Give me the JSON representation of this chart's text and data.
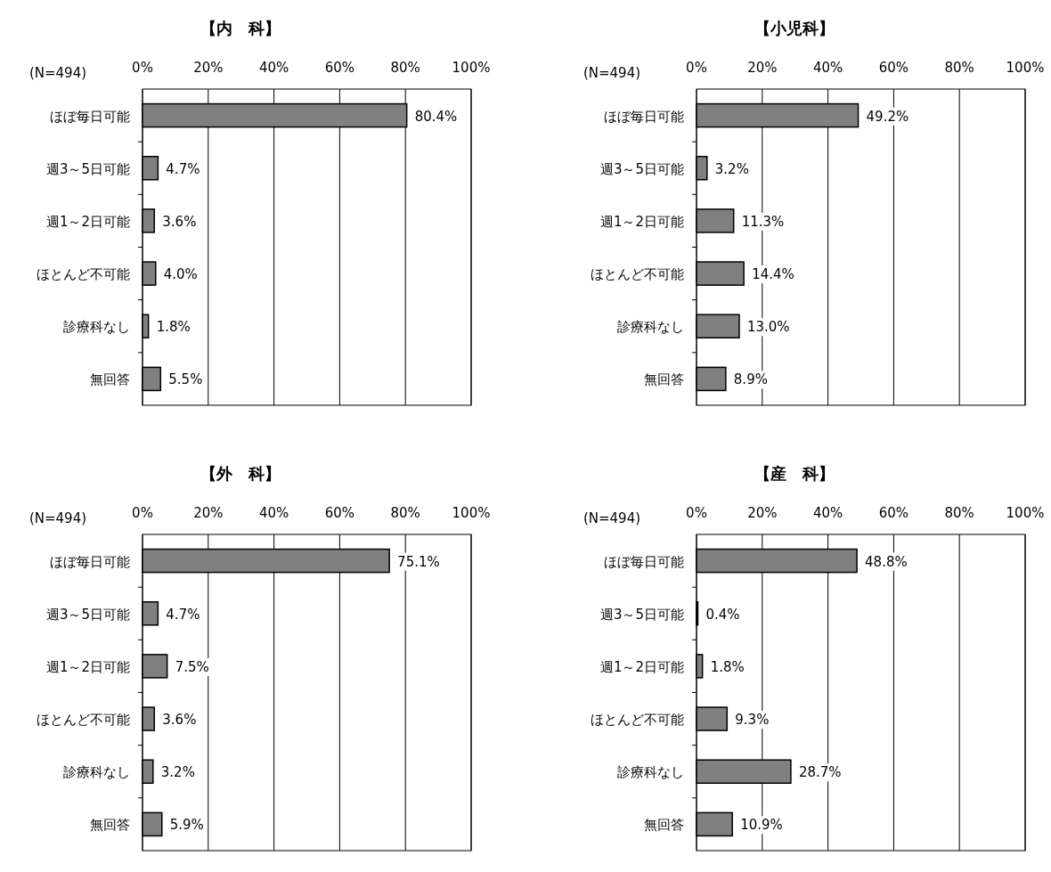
{
  "chart_data": [
    {
      "type": "bar",
      "orientation": "horizontal",
      "title": "【内　科】",
      "annotations": [
        "(N=494)"
      ],
      "categories": [
        "ほぼ毎日可能",
        "週3～5日可能",
        "週1～2日可能",
        "ほとんど不可能",
        "診療科なし",
        "無回答"
      ],
      "values": [
        80.4,
        4.7,
        3.6,
        4.0,
        1.8,
        5.5
      ],
      "value_labels": [
        "80.4%",
        "4.7%",
        "3.6%",
        "4.0%",
        "1.8%",
        "5.5%"
      ],
      "color": "#808080",
      "xlim": [
        0,
        100
      ],
      "xticks": [
        {
          "value": 0,
          "label": "0%"
        },
        {
          "value": 20,
          "label": "20%"
        },
        {
          "value": 40,
          "label": "40%"
        },
        {
          "value": 60,
          "label": "60%"
        },
        {
          "value": 80,
          "label": "80%"
        },
        {
          "value": 100,
          "label": "100%"
        }
      ],
      "grid": "x"
    },
    {
      "type": "bar",
      "orientation": "horizontal",
      "title": "【小児科】",
      "annotations": [
        "(N=494)"
      ],
      "categories": [
        "ほぼ毎日可能",
        "週3～5日可能",
        "週1～2日可能",
        "ほとんど不可能",
        "診療科なし",
        "無回答"
      ],
      "values": [
        49.2,
        3.2,
        11.3,
        14.4,
        13.0,
        8.9
      ],
      "value_labels": [
        "49.2%",
        "3.2%",
        "11.3%",
        "14.4%",
        "13.0%",
        "8.9%"
      ],
      "color": "#808080",
      "xlim": [
        0,
        100
      ],
      "xticks": [
        {
          "value": 0,
          "label": "0%"
        },
        {
          "value": 20,
          "label": "20%"
        },
        {
          "value": 40,
          "label": "40%"
        },
        {
          "value": 60,
          "label": "60%"
        },
        {
          "value": 80,
          "label": "80%"
        },
        {
          "value": 100,
          "label": "100%"
        }
      ],
      "grid": "x"
    },
    {
      "type": "bar",
      "orientation": "horizontal",
      "title": "【外　科】",
      "annotations": [
        "(N=494)"
      ],
      "categories": [
        "ほぼ毎日可能",
        "週3～5日可能",
        "週1～2日可能",
        "ほとんど不可能",
        "診療科なし",
        "無回答"
      ],
      "values": [
        75.1,
        4.7,
        7.5,
        3.6,
        3.2,
        5.9
      ],
      "value_labels": [
        "75.1%",
        "4.7%",
        "7.5%",
        "3.6%",
        "3.2%",
        "5.9%"
      ],
      "color": "#808080",
      "xlim": [
        0,
        100
      ],
      "xticks": [
        {
          "value": 0,
          "label": "0%"
        },
        {
          "value": 20,
          "label": "20%"
        },
        {
          "value": 40,
          "label": "40%"
        },
        {
          "value": 60,
          "label": "60%"
        },
        {
          "value": 80,
          "label": "80%"
        },
        {
          "value": 100,
          "label": "100%"
        }
      ],
      "grid": "x"
    },
    {
      "type": "bar",
      "orientation": "horizontal",
      "title": "【産　科】",
      "annotations": [
        "(N=494)"
      ],
      "categories": [
        "ほぼ毎日可能",
        "週3～5日可能",
        "週1～2日可能",
        "ほとんど不可能",
        "診療科なし",
        "無回答"
      ],
      "values": [
        48.8,
        0.4,
        1.8,
        9.3,
        28.7,
        10.9
      ],
      "value_labels": [
        "48.8%",
        "0.4%",
        "1.8%",
        "9.3%",
        "28.7%",
        "10.9%"
      ],
      "color": "#808080",
      "xlim": [
        0,
        100
      ],
      "xticks": [
        {
          "value": 0,
          "label": "0%"
        },
        {
          "value": 20,
          "label": "20%"
        },
        {
          "value": 40,
          "label": "40%"
        },
        {
          "value": 60,
          "label": "60%"
        },
        {
          "value": 80,
          "label": "80%"
        },
        {
          "value": 100,
          "label": "100%"
        }
      ],
      "grid": "x"
    }
  ]
}
